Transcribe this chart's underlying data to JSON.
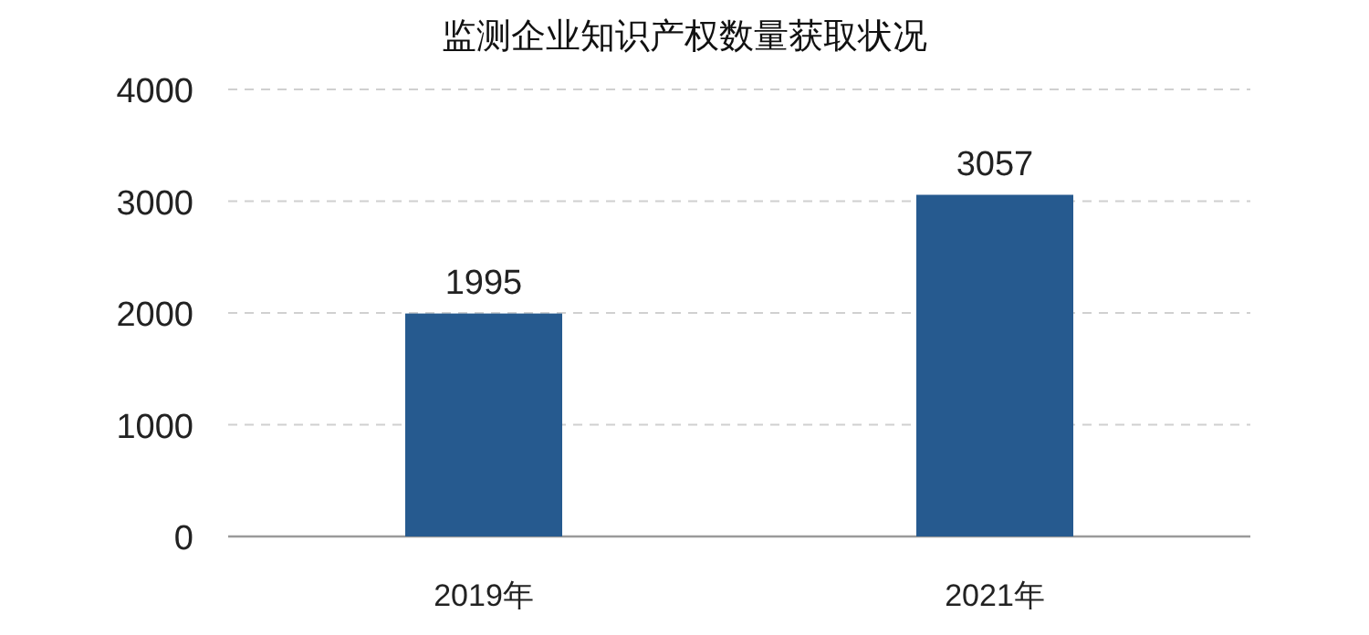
{
  "chart_data": {
    "type": "bar",
    "title": "监测企业知识产权数量获取状况",
    "categories": [
      "2019年",
      "2021年"
    ],
    "values": [
      1995,
      3057
    ],
    "color": "#265a8f",
    "ylim": [
      0,
      4000
    ],
    "yticks": [
      0,
      1000,
      2000,
      3000,
      4000
    ],
    "grid": "y",
    "data_labels": true
  }
}
